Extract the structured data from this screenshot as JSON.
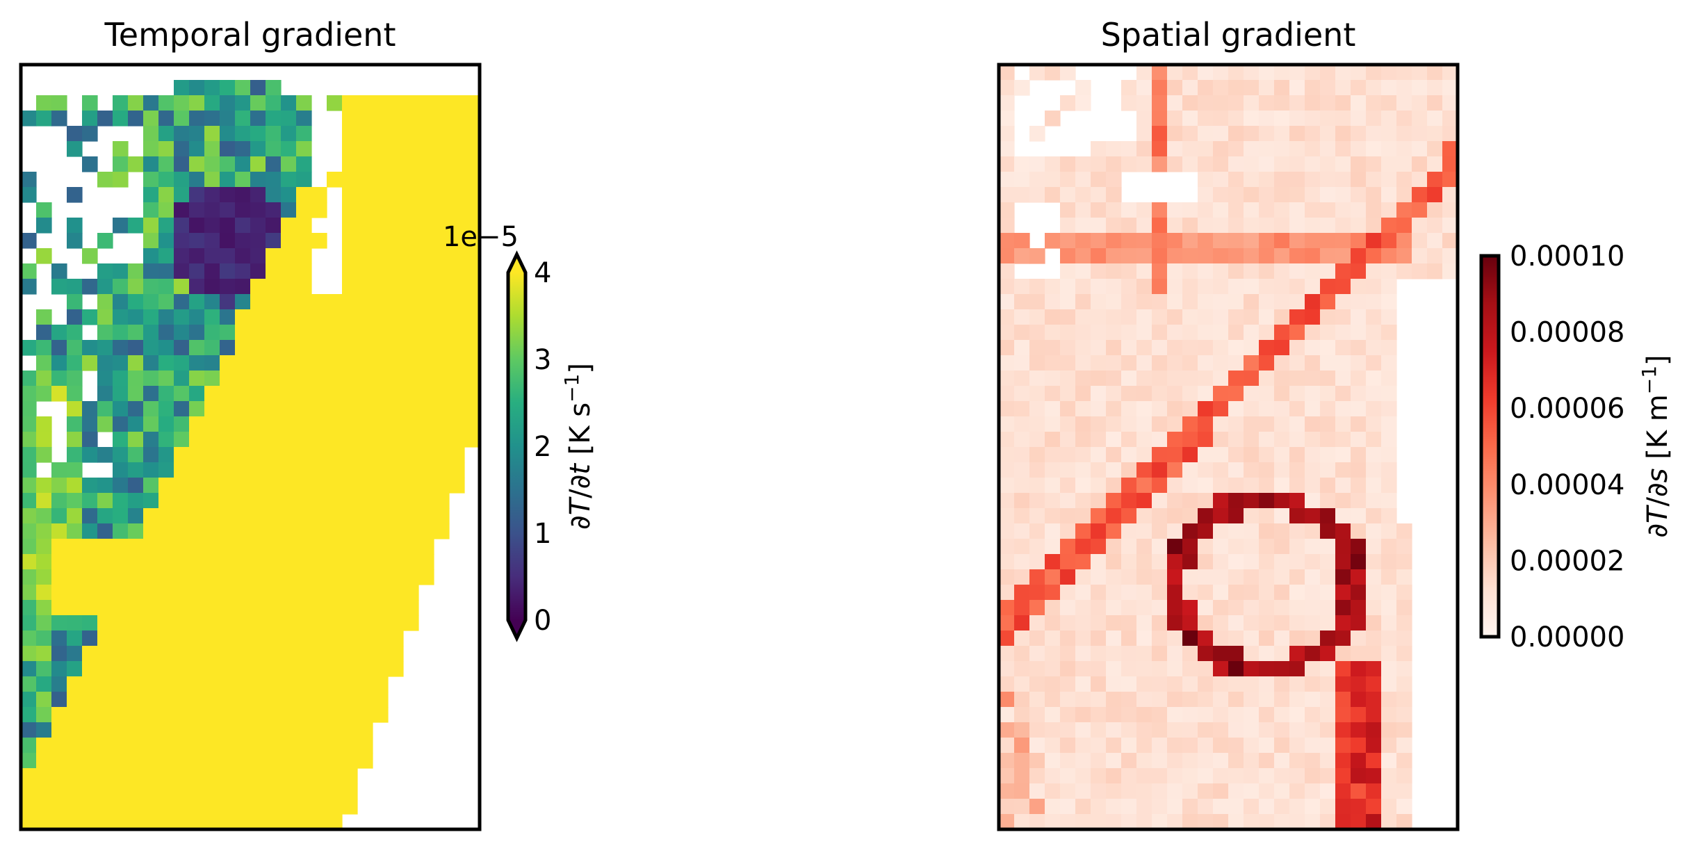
{
  "chart_data": [
    {
      "type": "heatmap",
      "title": "Temporal gradient",
      "colormap": "viridis",
      "missing_color": "#ffffff",
      "nx": 30,
      "ny": 50,
      "colorbar": {
        "label_prefix": "∂",
        "label_var": "T",
        "label_mid": "/∂",
        "label_var2": "t",
        "label_units": " [K s",
        "label_exp": "−1",
        "label_close": "]",
        "ticks": [
          "0",
          "1",
          "2",
          "3",
          "4"
        ],
        "tick_values": [
          0,
          1,
          2,
          3,
          4
        ],
        "offset_text": "1e−5",
        "range": [
          0,
          4
        ],
        "extend": "both"
      }
    },
    {
      "type": "heatmap",
      "title": "Spatial gradient",
      "colormap": "Reds",
      "missing_color": "#ffffff",
      "nx": 30,
      "ny": 50,
      "colorbar": {
        "label_prefix": "∂",
        "label_var": "T",
        "label_mid": "/∂",
        "label_var2": "s",
        "label_units": " [K m",
        "label_exp": "−1",
        "label_close": "]",
        "ticks": [
          "0.00000",
          "0.00002",
          "0.00004",
          "0.00006",
          "0.00008",
          "0.00010"
        ],
        "tick_values": [
          0,
          2e-05,
          4e-05,
          6e-05,
          8e-05,
          0.0001
        ],
        "range": [
          0,
          0.0001
        ],
        "extend": "neither"
      }
    }
  ]
}
